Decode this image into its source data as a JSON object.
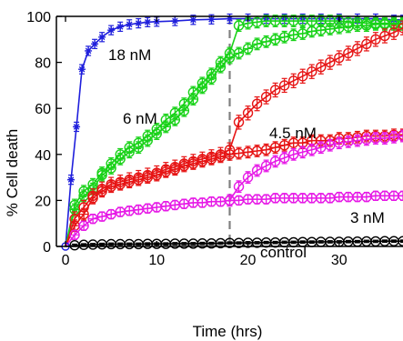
{
  "chart_data": {
    "type": "line",
    "xlabel": "Time (hrs)",
    "ylabel": "% Cell death",
    "xlim": [
      -1,
      37
    ],
    "ylim": [
      0,
      100
    ],
    "xticks": [
      "0",
      "10",
      "20",
      "30"
    ],
    "yticks": [
      "0",
      "20",
      "40",
      "60",
      "80",
      "100"
    ],
    "grid": false,
    "legend": "none",
    "vline": {
      "x": 18,
      "style": "dashed",
      "color": "#808080"
    },
    "annotations": [
      "18 nM",
      "6 nM",
      "4.5 nM",
      "3 nM",
      "control"
    ],
    "series": [
      {
        "color": "#1f1fdc",
        "marker": "asterisk",
        "err": 2,
        "points": [
          [
            0,
            0
          ],
          [
            0.6,
            29
          ],
          [
            1.2,
            52
          ],
          [
            1.8,
            77
          ],
          [
            2.5,
            85
          ],
          [
            3.2,
            88
          ],
          [
            4,
            91
          ],
          [
            5,
            94
          ],
          [
            6,
            95.5
          ],
          [
            7,
            96.5
          ],
          [
            8,
            97
          ],
          [
            9,
            97.5
          ],
          [
            10,
            97.7
          ],
          [
            12,
            98
          ],
          [
            14,
            98.5
          ],
          [
            16,
            98.7
          ],
          [
            18,
            99
          ],
          [
            20,
            99
          ],
          [
            22,
            99
          ],
          [
            24,
            99
          ],
          [
            26,
            99
          ],
          [
            28,
            99
          ],
          [
            30,
            99
          ],
          [
            32,
            99
          ],
          [
            34,
            99
          ],
          [
            36,
            98.5
          ],
          [
            37,
            98.5
          ]
        ]
      },
      {
        "color": "#19d219",
        "marker": "circle-plus",
        "err": 2.5,
        "points": [
          [
            0,
            0
          ],
          [
            1,
            16
          ],
          [
            2,
            22
          ],
          [
            3,
            25
          ],
          [
            4,
            31
          ],
          [
            5,
            34
          ],
          [
            6,
            38
          ],
          [
            7,
            41
          ],
          [
            8,
            43
          ],
          [
            9,
            46
          ],
          [
            10,
            49
          ],
          [
            11,
            52
          ],
          [
            12,
            55
          ],
          [
            13,
            59
          ],
          [
            14,
            64
          ],
          [
            15,
            69
          ],
          [
            16,
            73
          ],
          [
            17,
            78
          ],
          [
            18,
            82
          ],
          [
            19,
            84
          ],
          [
            20,
            86
          ],
          [
            21,
            88
          ],
          [
            22,
            89
          ],
          [
            23,
            90
          ],
          [
            24,
            91
          ],
          [
            25,
            92
          ],
          [
            26,
            92.5
          ],
          [
            27,
            93.5
          ],
          [
            28,
            94
          ],
          [
            29,
            94.5
          ],
          [
            30,
            95
          ],
          [
            31,
            95.5
          ],
          [
            32,
            96
          ],
          [
            33,
            96
          ],
          [
            34,
            96.5
          ],
          [
            35,
            96.5
          ],
          [
            36,
            96.5
          ],
          [
            37,
            96.5
          ]
        ]
      },
      {
        "color": "#19d219",
        "marker": "circle",
        "err": 2.5,
        "points": [
          [
            0,
            0
          ],
          [
            1,
            18
          ],
          [
            2,
            24
          ],
          [
            3,
            27
          ],
          [
            4,
            32
          ],
          [
            5,
            36
          ],
          [
            6,
            40
          ],
          [
            7,
            43
          ],
          [
            8,
            45
          ],
          [
            9,
            48
          ],
          [
            10,
            51
          ],
          [
            11,
            55
          ],
          [
            12,
            58
          ],
          [
            13,
            62
          ],
          [
            14,
            67
          ],
          [
            15,
            71
          ],
          [
            16,
            75
          ],
          [
            17,
            80
          ],
          [
            18,
            84
          ],
          [
            19,
            96
          ],
          [
            20,
            97
          ],
          [
            21,
            97.5
          ],
          [
            22,
            98
          ],
          [
            23,
            98
          ],
          [
            24,
            98
          ],
          [
            25,
            98
          ],
          [
            26,
            98
          ],
          [
            27,
            98
          ],
          [
            28,
            98
          ],
          [
            29,
            98
          ],
          [
            30,
            98
          ],
          [
            31,
            97.5
          ],
          [
            32,
            97.5
          ],
          [
            33,
            97
          ],
          [
            34,
            97
          ],
          [
            35,
            97
          ],
          [
            36,
            97
          ],
          [
            37,
            97
          ]
        ]
      },
      {
        "color": "#e61414",
        "marker": "circle-plus",
        "err": 2.5,
        "points": [
          [
            0,
            0
          ],
          [
            1,
            9
          ],
          [
            2,
            14
          ],
          [
            3,
            21
          ],
          [
            4,
            24
          ],
          [
            5,
            26
          ],
          [
            6,
            27
          ],
          [
            7,
            28
          ],
          [
            8,
            29
          ],
          [
            9,
            30
          ],
          [
            10,
            31
          ],
          [
            11,
            32.5
          ],
          [
            12,
            33.5
          ],
          [
            13,
            35
          ],
          [
            14,
            36
          ],
          [
            15,
            37
          ],
          [
            16,
            38
          ],
          [
            17,
            39
          ],
          [
            18,
            40
          ],
          [
            19,
            40.5
          ],
          [
            20,
            41
          ],
          [
            21,
            41.5
          ],
          [
            22,
            42
          ],
          [
            23,
            43
          ],
          [
            24,
            44
          ],
          [
            25,
            45
          ],
          [
            26,
            45
          ],
          [
            27,
            46
          ],
          [
            28,
            46
          ],
          [
            29,
            46
          ],
          [
            30,
            47
          ],
          [
            31,
            47
          ],
          [
            32,
            47.5
          ],
          [
            33,
            48
          ],
          [
            34,
            48
          ],
          [
            35,
            48
          ],
          [
            36,
            48.5
          ],
          [
            37,
            48.5
          ]
        ]
      },
      {
        "color": "#e61414",
        "marker": "circle",
        "err": 3,
        "points": [
          [
            0,
            0
          ],
          [
            1,
            12
          ],
          [
            2,
            17
          ],
          [
            3,
            22
          ],
          [
            4,
            25
          ],
          [
            5,
            27
          ],
          [
            6,
            28
          ],
          [
            7,
            29
          ],
          [
            8,
            30
          ],
          [
            9,
            31
          ],
          [
            10,
            32
          ],
          [
            11,
            33.5
          ],
          [
            12,
            34.5
          ],
          [
            13,
            36
          ],
          [
            14,
            37
          ],
          [
            15,
            38
          ],
          [
            16,
            39
          ],
          [
            17,
            40
          ],
          [
            18,
            42
          ],
          [
            19,
            54
          ],
          [
            20,
            58
          ],
          [
            21,
            62
          ],
          [
            22,
            65
          ],
          [
            23,
            68
          ],
          [
            24,
            70
          ],
          [
            25,
            72
          ],
          [
            26,
            74
          ],
          [
            27,
            76
          ],
          [
            28,
            78
          ],
          [
            29,
            80
          ],
          [
            30,
            82
          ],
          [
            31,
            84
          ],
          [
            32,
            86
          ],
          [
            33,
            88
          ],
          [
            34,
            90
          ],
          [
            35,
            91.5
          ],
          [
            36,
            93
          ],
          [
            37,
            95
          ]
        ]
      },
      {
        "color": "#e619e6",
        "marker": "circle-plus",
        "err": 2,
        "points": [
          [
            0,
            0
          ],
          [
            1,
            5
          ],
          [
            2,
            9
          ],
          [
            3,
            12
          ],
          [
            4,
            13
          ],
          [
            5,
            14
          ],
          [
            6,
            15
          ],
          [
            7,
            15.5
          ],
          [
            8,
            16
          ],
          [
            9,
            16.5
          ],
          [
            10,
            17
          ],
          [
            11,
            17.5
          ],
          [
            12,
            18
          ],
          [
            13,
            18.5
          ],
          [
            14,
            19
          ],
          [
            15,
            19
          ],
          [
            16,
            19.5
          ],
          [
            17,
            19.5
          ],
          [
            18,
            20
          ],
          [
            19,
            20
          ],
          [
            20,
            20.5
          ],
          [
            21,
            20.5
          ],
          [
            22,
            20.5
          ],
          [
            23,
            21
          ],
          [
            24,
            21
          ],
          [
            25,
            21
          ],
          [
            26,
            21
          ],
          [
            27,
            21
          ],
          [
            28,
            21
          ],
          [
            29,
            21
          ],
          [
            30,
            21.5
          ],
          [
            31,
            21.5
          ],
          [
            32,
            21.5
          ],
          [
            33,
            21.5
          ],
          [
            34,
            22
          ],
          [
            35,
            22
          ],
          [
            36,
            22
          ],
          [
            37,
            22
          ]
        ]
      },
      {
        "color": "#e619e6",
        "marker": "circle",
        "err": 2.5,
        "points": [
          [
            18,
            20
          ],
          [
            19,
            26
          ],
          [
            20,
            30
          ],
          [
            21,
            33
          ],
          [
            22,
            35
          ],
          [
            23,
            37
          ],
          [
            24,
            38.5
          ],
          [
            25,
            40
          ],
          [
            26,
            41
          ],
          [
            27,
            42
          ],
          [
            28,
            43
          ],
          [
            29,
            44
          ],
          [
            30,
            45
          ],
          [
            31,
            45.5
          ],
          [
            32,
            46
          ],
          [
            33,
            46.5
          ],
          [
            34,
            47
          ],
          [
            35,
            47
          ],
          [
            36,
            47.5
          ],
          [
            37,
            48
          ]
        ]
      },
      {
        "color": "#000000",
        "marker": "circle",
        "err": 0.5,
        "points": [
          [
            0,
            0
          ],
          [
            1,
            0.5
          ],
          [
            2,
            0.7
          ],
          [
            3,
            0.8
          ],
          [
            4,
            0.9
          ],
          [
            5,
            1
          ],
          [
            6,
            1
          ],
          [
            7,
            1
          ],
          [
            8,
            1
          ],
          [
            9,
            1.1
          ],
          [
            10,
            1.1
          ],
          [
            11,
            1.1
          ],
          [
            12,
            1.2
          ],
          [
            13,
            1.2
          ],
          [
            14,
            1.2
          ],
          [
            15,
            1.3
          ],
          [
            16,
            1.3
          ],
          [
            17,
            1.4
          ],
          [
            18,
            1.5
          ],
          [
            19,
            1.5
          ],
          [
            20,
            1.6
          ],
          [
            21,
            1.6
          ],
          [
            22,
            1.7
          ],
          [
            23,
            1.7
          ],
          [
            24,
            1.8
          ],
          [
            25,
            1.8
          ],
          [
            26,
            1.9
          ],
          [
            27,
            1.9
          ],
          [
            28,
            2
          ],
          [
            29,
            2
          ],
          [
            30,
            2
          ],
          [
            31,
            2.1
          ],
          [
            32,
            2.1
          ],
          [
            33,
            2.2
          ],
          [
            34,
            2.2
          ],
          [
            35,
            2.3
          ],
          [
            36,
            2.3
          ],
          [
            37,
            2.3
          ]
        ]
      }
    ]
  }
}
